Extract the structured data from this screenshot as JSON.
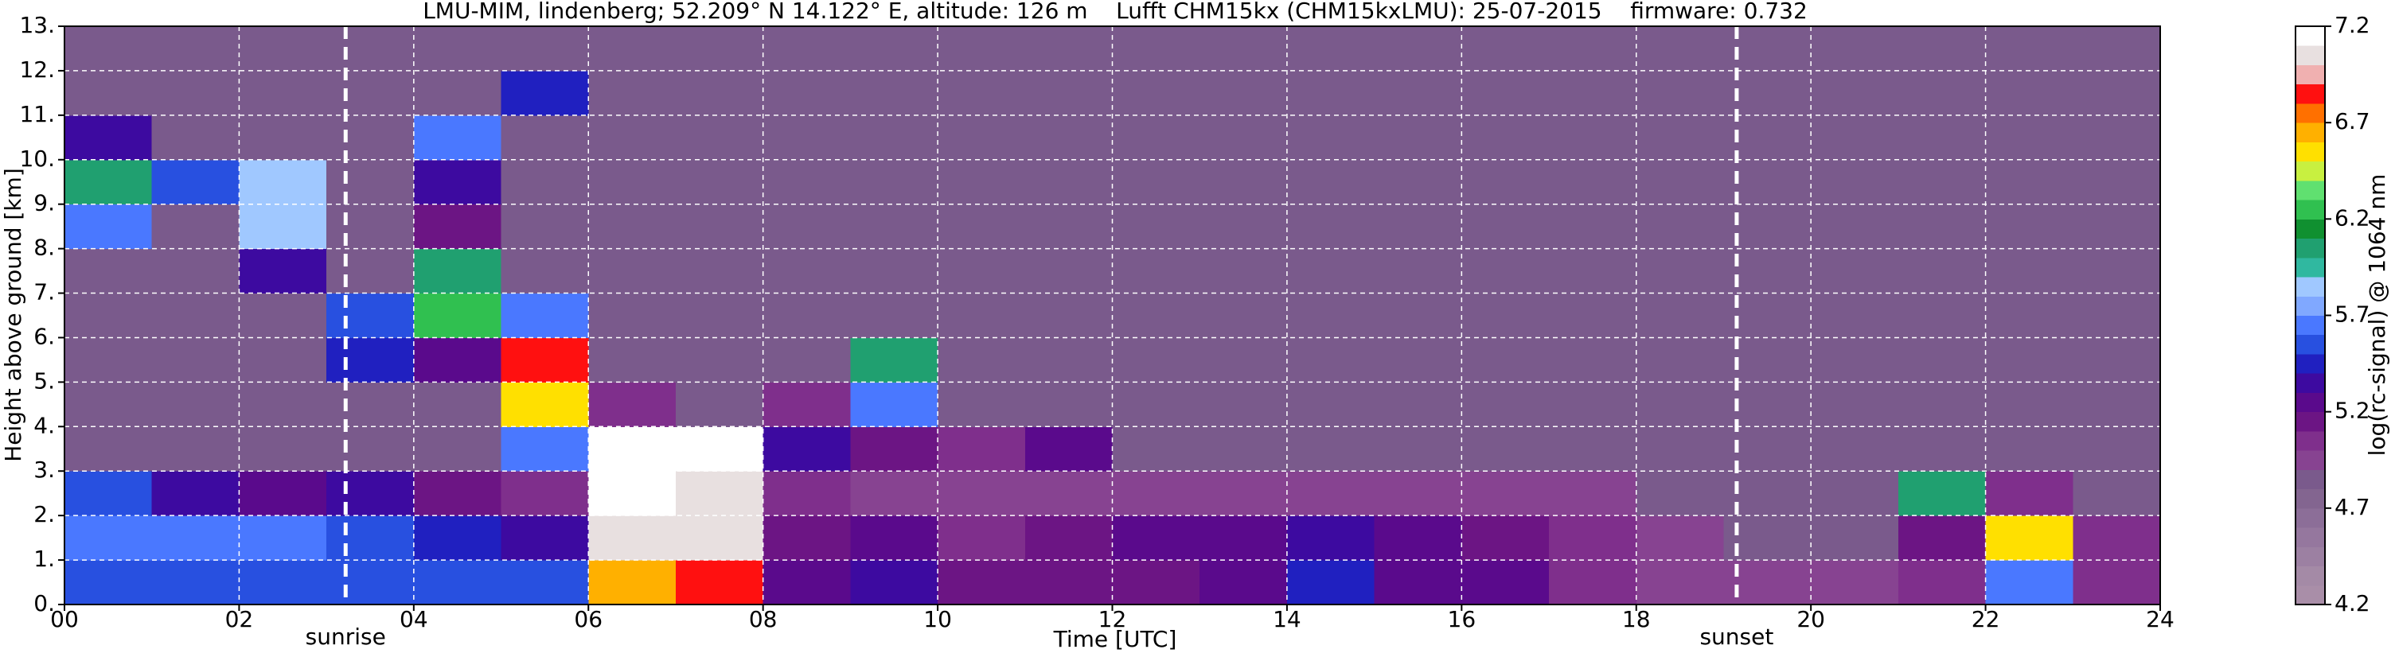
{
  "chart_data": {
    "type": "heatmap",
    "title": "LMU-MIM, lindenberg; 52.209° N 14.122° E, altitude: 126 m    Lufft CHM15kx (CHM15kxLMU): 25-07-2015    firmware: 0.732",
    "xlabel": "Time [UTC]",
    "ylabel": "Height above ground [km]",
    "colorbar_label": "log(rc-signal) @ 1064 nm",
    "xlim": [
      0,
      24
    ],
    "ylim": [
      0,
      13
    ],
    "zlim": [
      4.2,
      7.2
    ],
    "xticks": [
      {
        "value": 0,
        "label": "00"
      },
      {
        "value": 2,
        "label": "02"
      },
      {
        "value": 4,
        "label": "04"
      },
      {
        "value": 6,
        "label": "06"
      },
      {
        "value": 8,
        "label": "08"
      },
      {
        "value": 10,
        "label": "10"
      },
      {
        "value": 12,
        "label": "12"
      },
      {
        "value": 14,
        "label": "14"
      },
      {
        "value": 16,
        "label": "16"
      },
      {
        "value": 18,
        "label": "18"
      },
      {
        "value": 20,
        "label": "20"
      },
      {
        "value": 22,
        "label": "22"
      },
      {
        "value": 24,
        "label": "24"
      }
    ],
    "yticks": [
      {
        "value": 0,
        "label": "0."
      },
      {
        "value": 1,
        "label": "1."
      },
      {
        "value": 2,
        "label": "2."
      },
      {
        "value": 3,
        "label": "3."
      },
      {
        "value": 4,
        "label": "4."
      },
      {
        "value": 5,
        "label": "5."
      },
      {
        "value": 6,
        "label": "6."
      },
      {
        "value": 7,
        "label": "7."
      },
      {
        "value": 8,
        "label": "8."
      },
      {
        "value": 9,
        "label": "9."
      },
      {
        "value": 10,
        "label": "10."
      },
      {
        "value": 11,
        "label": "11."
      },
      {
        "value": 12,
        "label": "12."
      },
      {
        "value": 13,
        "label": "13."
      }
    ],
    "zticks": [
      4.2,
      4.7,
      5.2,
      5.7,
      6.2,
      6.7,
      7.2
    ],
    "grid": true,
    "colors": [
      "#a98ea8",
      "#a48aa6",
      "#9c80a2",
      "#95779e",
      "#8c6e98",
      "#836590",
      "#7a5a8c",
      "#874391",
      "#7f2f8c",
      "#6c1584",
      "#5a0a8c",
      "#3d0aa0",
      "#2020c0",
      "#2850e0",
      "#4a78ff",
      "#80a8ff",
      "#a0c8ff",
      "#30b8a0",
      "#20a070",
      "#109030",
      "#30c050",
      "#60e070",
      "#c8f040",
      "#ffe000",
      "#ffb000",
      "#ff7000",
      "#ff1010",
      "#f0b0b0",
      "#e8e0e0",
      "#ffffff"
    ],
    "annotations": [
      {
        "x": 3.22,
        "label": "sunrise"
      },
      {
        "x": 19.15,
        "label": "sunset"
      }
    ],
    "z": [
      [
        5.5,
        5.5,
        5.5,
        5.5,
        5.5,
        5.5,
        6.6,
        6.8,
        5.2,
        5.3,
        5.1,
        5.1,
        5.1,
        5.2,
        5.4,
        5.2,
        5.2,
        5.0,
        4.9,
        4.9,
        4.9,
        5.0,
        5.6,
        5.0
      ],
      [
        5.6,
        5.6,
        5.6,
        5.5,
        5.4,
        5.3,
        7.0,
        7.0,
        5.1,
        5.2,
        5.0,
        5.1,
        5.2,
        5.2,
        5.3,
        5.2,
        5.1,
        5.0,
        4.9,
        4.8,
        4.8,
        5.1,
        6.5,
        5.0
      ],
      [
        5.5,
        5.3,
        5.2,
        5.3,
        5.1,
        5.0,
        7.2,
        7.0,
        5.0,
        4.9,
        4.9,
        4.9,
        4.9,
        4.9,
        4.9,
        4.9,
        4.9,
        4.9,
        4.8,
        4.8,
        4.8,
        6.0,
        5.0,
        4.8
      ],
      [
        4.8,
        4.8,
        4.8,
        4.8,
        4.8,
        5.6,
        7.2,
        7.1,
        5.3,
        5.1,
        5.0,
        5.2,
        4.8,
        4.8,
        4.8,
        4.8,
        4.8,
        4.8,
        4.8,
        4.8,
        4.8,
        4.8,
        4.8,
        4.8
      ],
      [
        4.8,
        4.8,
        4.8,
        4.8,
        4.8,
        6.5,
        5.0,
        4.8,
        5.0,
        5.6,
        4.8,
        4.8,
        4.8,
        4.8,
        4.8,
        4.8,
        4.8,
        4.8,
        4.8,
        4.8,
        4.8,
        4.8,
        4.8,
        4.8
      ],
      [
        4.8,
        4.8,
        4.8,
        5.4,
        5.2,
        6.8,
        4.8,
        4.8,
        4.8,
        6.0,
        4.8,
        4.8,
        4.8,
        4.8,
        4.8,
        4.8,
        4.8,
        4.8,
        4.8,
        4.8,
        4.8,
        4.8,
        4.8,
        4.8
      ],
      [
        4.8,
        4.8,
        4.8,
        5.5,
        6.2,
        5.6,
        4.8,
        4.8,
        4.8,
        4.8,
        4.8,
        4.8,
        4.8,
        4.8,
        4.8,
        4.8,
        4.8,
        4.8,
        4.8,
        4.8,
        4.8,
        4.8,
        4.8,
        4.8
      ],
      [
        4.8,
        4.8,
        5.3,
        4.8,
        6.0,
        4.8,
        4.8,
        4.8,
        4.8,
        4.8,
        4.8,
        4.8,
        4.8,
        4.8,
        4.8,
        4.8,
        4.8,
        4.8,
        4.8,
        4.8,
        4.8,
        4.8,
        4.8,
        4.8
      ],
      [
        5.6,
        4.8,
        5.8,
        4.8,
        5.1,
        4.8,
        4.8,
        4.8,
        4.8,
        4.8,
        4.8,
        4.8,
        4.8,
        4.8,
        4.8,
        4.8,
        4.8,
        4.8,
        4.8,
        4.8,
        4.8,
        4.8,
        4.8,
        4.8
      ],
      [
        6.0,
        5.5,
        5.8,
        4.8,
        5.3,
        4.8,
        4.8,
        4.8,
        4.8,
        4.8,
        4.8,
        4.8,
        4.8,
        4.8,
        4.8,
        4.8,
        4.8,
        4.8,
        4.8,
        4.8,
        4.8,
        4.8,
        4.8,
        4.8
      ],
      [
        5.3,
        4.8,
        4.8,
        4.8,
        5.6,
        4.8,
        4.8,
        4.8,
        4.8,
        4.8,
        4.8,
        4.8,
        4.8,
        4.8,
        4.8,
        4.8,
        4.8,
        4.8,
        4.8,
        4.8,
        4.8,
        4.8,
        4.8,
        4.8
      ],
      [
        4.8,
        4.8,
        4.8,
        4.8,
        4.8,
        5.4,
        4.8,
        4.8,
        4.8,
        4.8,
        4.8,
        4.8,
        4.8,
        4.8,
        4.8,
        4.8,
        4.8,
        4.8,
        4.8,
        4.8,
        4.8,
        4.8,
        4.8,
        4.8
      ],
      [
        4.8,
        4.8,
        4.8,
        4.8,
        4.8,
        4.8,
        4.8,
        4.8,
        4.8,
        4.8,
        4.8,
        4.8,
        4.8,
        4.8,
        4.8,
        4.8,
        4.8,
        4.8,
        4.8,
        4.8,
        4.8,
        4.8,
        4.8,
        4.8
      ]
    ]
  }
}
